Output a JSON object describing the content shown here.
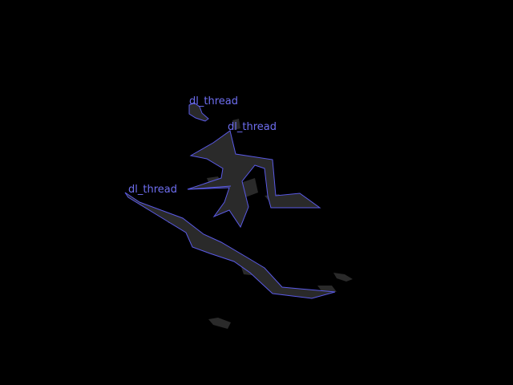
{
  "scene": {
    "background": "#000000",
    "shape_fill_color": "#2a2a2a",
    "outline_color": "#5a5ae6",
    "label_color": "#6e6ef0"
  },
  "labels": [
    {
      "text": "dl_thread"
    },
    {
      "text": "dl_thread"
    },
    {
      "text": "dl_thread"
    }
  ]
}
